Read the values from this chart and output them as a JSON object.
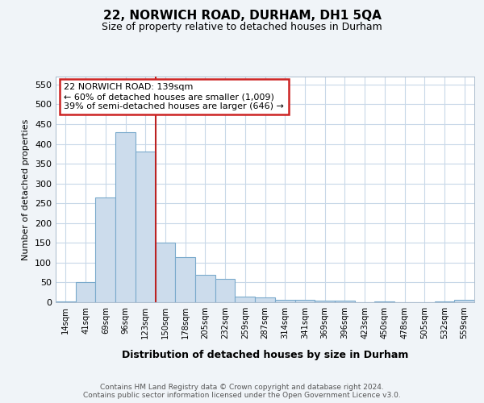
{
  "title": "22, NORWICH ROAD, DURHAM, DH1 5QA",
  "subtitle": "Size of property relative to detached houses in Durham",
  "xlabel": "Distribution of detached houses by size in Durham",
  "ylabel": "Number of detached properties",
  "categories": [
    "14sqm",
    "41sqm",
    "69sqm",
    "96sqm",
    "123sqm",
    "150sqm",
    "178sqm",
    "205sqm",
    "232sqm",
    "259sqm",
    "287sqm",
    "314sqm",
    "341sqm",
    "369sqm",
    "396sqm",
    "423sqm",
    "450sqm",
    "478sqm",
    "505sqm",
    "532sqm",
    "559sqm"
  ],
  "values": [
    3,
    50,
    265,
    430,
    380,
    150,
    115,
    70,
    60,
    15,
    13,
    7,
    6,
    5,
    5,
    0,
    3,
    0,
    0,
    3,
    6
  ],
  "bar_color": "#ccdcec",
  "bar_edge_color": "#7aaacc",
  "vline_color": "#bb2222",
  "annotation_text": "22 NORWICH ROAD: 139sqm\n← 60% of detached houses are smaller (1,009)\n39% of semi-detached houses are larger (646) →",
  "annotation_box_color": "#ffffff",
  "annotation_box_edge": "#cc2222",
  "ylim": [
    0,
    570
  ],
  "yticks": [
    0,
    50,
    100,
    150,
    200,
    250,
    300,
    350,
    400,
    450,
    500,
    550
  ],
  "footer_text": "Contains HM Land Registry data © Crown copyright and database right 2024.\nContains public sector information licensed under the Open Government Licence v3.0.",
  "bg_color": "#f0f4f8",
  "plot_bg_color": "#ffffff",
  "grid_color": "#c8d8e8"
}
